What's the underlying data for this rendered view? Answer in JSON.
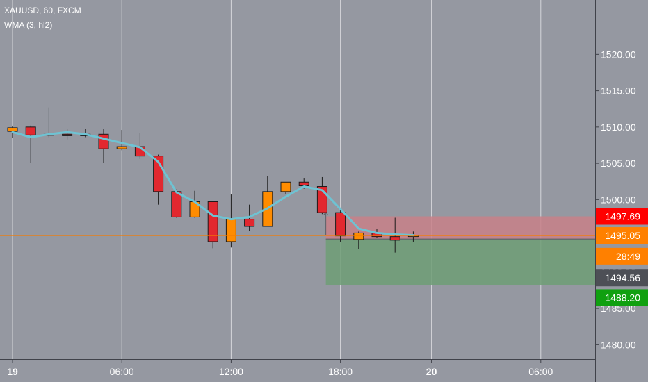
{
  "legend": {
    "symbol": "XAUUSD, 60, FXCM",
    "indicator": "WMA (3, hl2)"
  },
  "colors": {
    "background": "#9598a1",
    "grid": "#d6d7db",
    "up_candle": "#ff8c00",
    "down_candle": "#e2282f",
    "wick": "#1b1b1b",
    "wma_line": "#6ec3d3",
    "price_line": "#f57c00",
    "stop_zone": "#c88088",
    "target_zone": "#6e9e76",
    "label_stop": "#ff0000",
    "label_last": "#ff8000",
    "label_entry": "#4d4f56",
    "label_target": "#10a010"
  },
  "chart_data": {
    "type": "candlestick",
    "title": "XAUUSD, 60, FXCM",
    "ylim": [
      1475.5,
      1525.5
    ],
    "y_ticks": [
      "1480.00",
      "1485.00",
      "1490.00",
      "1495.00",
      "1500.00",
      "1505.00",
      "1510.00",
      "1515.00",
      "1520.00"
    ],
    "x_ticks": [
      {
        "label": "19",
        "bar": 0,
        "bold": true
      },
      {
        "label": "06:00",
        "bar": 6
      },
      {
        "label": "12:00",
        "bar": 12
      },
      {
        "label": "18:00",
        "bar": 18
      },
      {
        "label": "20",
        "bar": 23,
        "bold": true
      },
      {
        "label": "06:00",
        "bar": 29
      }
    ],
    "candles": [
      {
        "o": 1509.4,
        "h": 1510.1,
        "l": 1508.5,
        "c": 1509.9
      },
      {
        "o": 1510.0,
        "h": 1510.2,
        "l": 1505.1,
        "c": 1508.9
      },
      {
        "o": 1509.0,
        "h": 1512.7,
        "l": 1508.6,
        "c": 1508.9
      },
      {
        "o": 1509.0,
        "h": 1509.7,
        "l": 1508.3,
        "c": 1508.8
      },
      {
        "o": 1509.0,
        "h": 1509.7,
        "l": 1508.6,
        "c": 1508.8
      },
      {
        "o": 1509.0,
        "h": 1509.7,
        "l": 1505.1,
        "c": 1507.0
      },
      {
        "o": 1507.0,
        "h": 1509.6,
        "l": 1506.8,
        "c": 1507.3
      },
      {
        "o": 1507.3,
        "h": 1509.2,
        "l": 1505.6,
        "c": 1506.0
      },
      {
        "o": 1506.0,
        "h": 1506.2,
        "l": 1499.3,
        "c": 1501.1
      },
      {
        "o": 1501.1,
        "h": 1501.4,
        "l": 1497.5,
        "c": 1497.6
      },
      {
        "o": 1497.6,
        "h": 1501.2,
        "l": 1497.5,
        "c": 1499.7
      },
      {
        "o": 1499.7,
        "h": 1499.8,
        "l": 1493.3,
        "c": 1494.2
      },
      {
        "o": 1494.2,
        "h": 1500.7,
        "l": 1493.4,
        "c": 1497.3
      },
      {
        "o": 1497.3,
        "h": 1499.3,
        "l": 1495.7,
        "c": 1496.3
      },
      {
        "o": 1496.3,
        "h": 1503.2,
        "l": 1496.3,
        "c": 1501.1
      },
      {
        "o": 1501.1,
        "h": 1502.4,
        "l": 1500.8,
        "c": 1502.4
      },
      {
        "o": 1502.4,
        "h": 1502.9,
        "l": 1501.5,
        "c": 1501.9
      },
      {
        "o": 1501.8,
        "h": 1503.1,
        "l": 1498.0,
        "c": 1498.2
      },
      {
        "o": 1498.2,
        "h": 1498.7,
        "l": 1494.2,
        "c": 1495.0
      },
      {
        "o": 1494.5,
        "h": 1495.6,
        "l": 1493.2,
        "c": 1495.4
      },
      {
        "o": 1495.4,
        "h": 1496.0,
        "l": 1494.7,
        "c": 1494.9
      },
      {
        "o": 1494.9,
        "h": 1497.5,
        "l": 1492.7,
        "c": 1494.4
      },
      {
        "o": 1494.9,
        "h": 1495.6,
        "l": 1494.2,
        "c": 1495.05
      }
    ],
    "wma": [
      1509.3,
      1508.6,
      1509.0,
      1509.3,
      1509.0,
      1508.4,
      1507.8,
      1507.2,
      1505.2,
      1501.0,
      1499.7,
      1497.8,
      1497.3,
      1497.6,
      1498.8,
      1500.4,
      1501.8,
      1501.3,
      1498.7,
      1496.0,
      1495.4,
      1495.2,
      1495.1
    ],
    "last_price": 1495.05,
    "position": {
      "entry": 1494.56,
      "stop": 1497.69,
      "target": 1488.2,
      "start_bar": 17.2,
      "end_bar": 32.6
    },
    "price_labels": [
      {
        "key": "stop",
        "text": "1497.69",
        "price": 1497.69
      },
      {
        "key": "last",
        "text": "1495.05",
        "price": 1495.05
      },
      {
        "key": "countdown",
        "text": "28:49",
        "price": 1492.2
      },
      {
        "key": "entry",
        "text": "1494.56",
        "price": 1489.2
      },
      {
        "key": "target",
        "text": "1488.20",
        "price": 1486.5
      }
    ]
  }
}
